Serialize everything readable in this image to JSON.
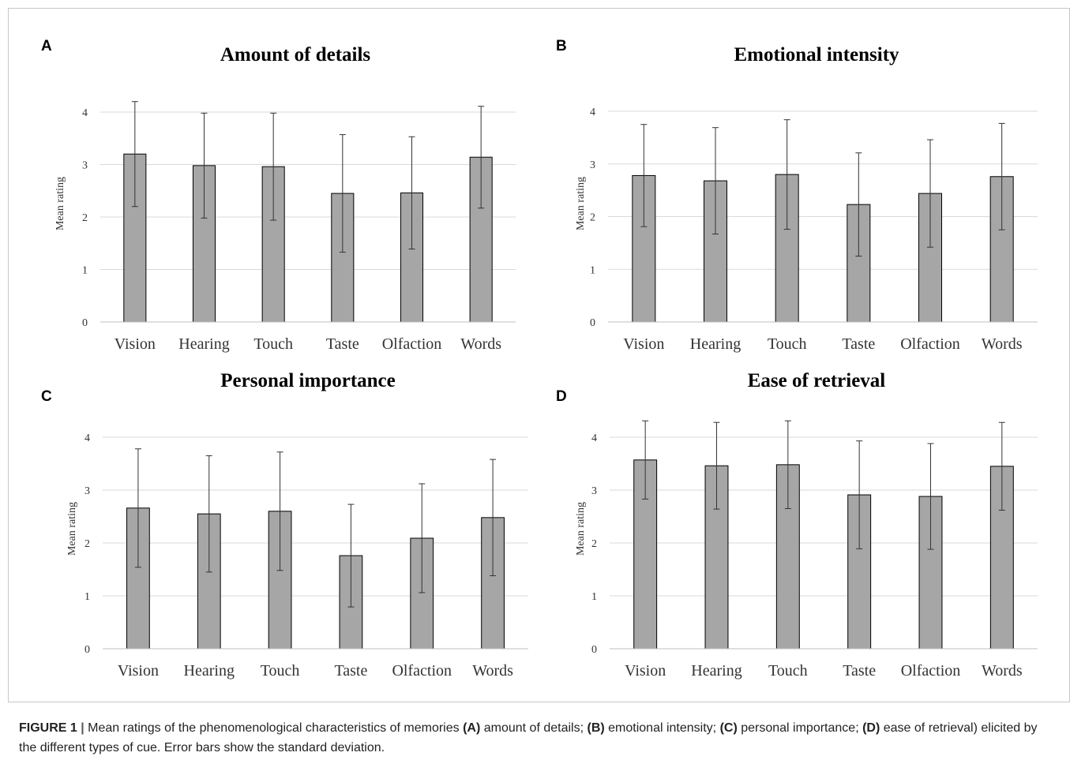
{
  "caption": {
    "figure_label": "FIGURE 1",
    "separator": "|",
    "part1": " Mean ratings of the phenomenological characteristics of memories ",
    "tag_a": "(A)",
    "text_a": " amount of details; ",
    "tag_b": "(B)",
    "text_b": " emotional intensity; ",
    "tag_c": "(C)",
    "text_c": " personal importance; ",
    "tag_d": "(D)",
    "text_d": " ease of retrieval) elicited by the different types of cue. Error bars show the standard deviation."
  },
  "chart_data": [
    {
      "letter": "A",
      "type": "bar",
      "title": "Amount of details",
      "ylabel": "Mean rating",
      "xlabel": "",
      "categories": [
        "Vision",
        "Hearing",
        "Touch",
        "Taste",
        "Olfaction",
        "Words"
      ],
      "values": [
        3.2,
        2.98,
        2.96,
        2.45,
        2.46,
        3.14
      ],
      "error_sd": [
        1.0,
        1.0,
        1.02,
        1.12,
        1.07,
        0.97
      ],
      "ylim": [
        0,
        4
      ],
      "yticks": [
        "0",
        "1",
        "2",
        "3",
        "4"
      ],
      "grid": true,
      "bar_color": "#a6a6a6"
    },
    {
      "letter": "B",
      "type": "bar",
      "title": "Emotional intensity",
      "ylabel": "Mean rating",
      "xlabel": "",
      "categories": [
        "Vision",
        "Hearing",
        "Touch",
        "Taste",
        "Olfaction",
        "Words"
      ],
      "values": [
        2.78,
        2.68,
        2.8,
        2.23,
        2.44,
        2.76
      ],
      "error_sd": [
        0.97,
        1.01,
        1.04,
        0.98,
        1.02,
        1.01
      ],
      "ylim": [
        0,
        4
      ],
      "yticks": [
        "0",
        "1",
        "2",
        "3",
        "4"
      ],
      "grid": true,
      "bar_color": "#a6a6a6"
    },
    {
      "letter": "C",
      "type": "bar",
      "title": "Personal importance",
      "ylabel": "Mean rating",
      "xlabel": "",
      "categories": [
        "Vision",
        "Hearing",
        "Touch",
        "Taste",
        "Olfaction",
        "Words"
      ],
      "values": [
        2.66,
        2.55,
        2.6,
        1.76,
        2.09,
        2.48
      ],
      "error_sd": [
        1.12,
        1.1,
        1.12,
        0.97,
        1.03,
        1.1
      ],
      "ylim": [
        0,
        4
      ],
      "yticks": [
        "0",
        "1",
        "2",
        "3",
        "4"
      ],
      "grid": true,
      "bar_color": "#a6a6a6"
    },
    {
      "letter": "D",
      "type": "bar",
      "title": "Ease of retrieval",
      "ylabel": "Mean rating",
      "xlabel": "",
      "categories": [
        "Vision",
        "Hearing",
        "Touch",
        "Taste",
        "Olfaction",
        "Words"
      ],
      "values": [
        3.57,
        3.46,
        3.48,
        2.91,
        2.88,
        3.45
      ],
      "error_sd": [
        0.74,
        0.82,
        0.83,
        1.02,
        1.0,
        0.83
      ],
      "ylim": [
        0,
        4
      ],
      "yticks": [
        "0",
        "1",
        "2",
        "3",
        "4"
      ],
      "grid": true,
      "bar_color": "#a6a6a6"
    }
  ]
}
